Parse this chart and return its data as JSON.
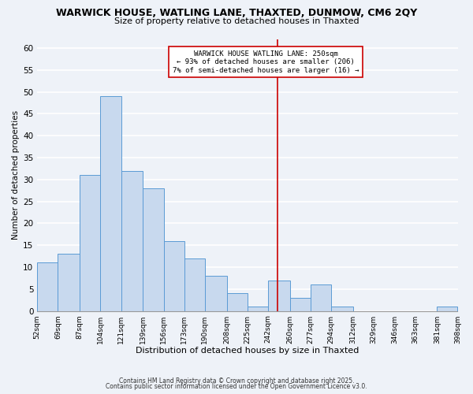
{
  "title": "WARWICK HOUSE, WATLING LANE, THAXTED, DUNMOW, CM6 2QY",
  "subtitle": "Size of property relative to detached houses in Thaxted",
  "xlabel": "Distribution of detached houses by size in Thaxted",
  "ylabel": "Number of detached properties",
  "bin_edges": [
    52,
    69,
    87,
    104,
    121,
    139,
    156,
    173,
    190,
    208,
    225,
    242,
    260,
    277,
    294,
    312,
    329,
    346,
    363,
    381,
    398
  ],
  "bar_heights": [
    11,
    13,
    31,
    49,
    32,
    28,
    16,
    12,
    8,
    4,
    1,
    7,
    3,
    6,
    1,
    0,
    0,
    0,
    0,
    1
  ],
  "bar_color": "#c8d9ee",
  "bar_edge_color": "#5b9bd5",
  "vline_x": 250,
  "vline_color": "#cc0000",
  "annotation_line1": "WARWICK HOUSE WATLING LANE: 250sqm",
  "annotation_line2": "← 93% of detached houses are smaller (206)",
  "annotation_line3": "7% of semi-detached houses are larger (16) →",
  "annotation_box_color": "white",
  "annotation_border_color": "#cc0000",
  "ylim": [
    0,
    62
  ],
  "yticks": [
    0,
    5,
    10,
    15,
    20,
    25,
    30,
    35,
    40,
    45,
    50,
    55,
    60
  ],
  "tick_labels": [
    "52sqm",
    "69sqm",
    "87sqm",
    "104sqm",
    "121sqm",
    "139sqm",
    "156sqm",
    "173sqm",
    "190sqm",
    "208sqm",
    "225sqm",
    "242sqm",
    "260sqm",
    "277sqm",
    "294sqm",
    "312sqm",
    "329sqm",
    "346sqm",
    "363sqm",
    "381sqm",
    "398sqm"
  ],
  "footer1": "Contains HM Land Registry data © Crown copyright and database right 2025.",
  "footer2": "Contains public sector information licensed under the Open Government Licence v3.0.",
  "bg_color": "#eef2f8",
  "grid_color": "white"
}
